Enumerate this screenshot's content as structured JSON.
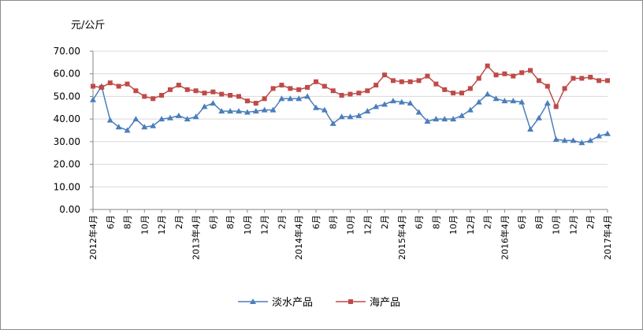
{
  "chart_data": {
    "type": "line",
    "unit_label": "元/公斤",
    "ylim": [
      0,
      70
    ],
    "y_ticks": [
      "0.00",
      "10.00",
      "20.00",
      "30.00",
      "40.00",
      "50.00",
      "60.00",
      "70.00"
    ],
    "grid": "horizontal",
    "legend_position": "bottom",
    "x_labels": [
      "2012年4月",
      "6月",
      "8月",
      "10月",
      "12月",
      "2月",
      "2013年4月",
      "6月",
      "8月",
      "10月",
      "12月",
      "2月",
      "2014年4月",
      "6月",
      "8月",
      "10月",
      "12月",
      "2月",
      "2015年4月",
      "6月",
      "8月",
      "10月",
      "12月",
      "2月",
      "2016年4月",
      "6月",
      "8月",
      "10月",
      "12月",
      "2月",
      "2017年4月"
    ],
    "series": [
      {
        "name": "淡水产品",
        "color": "#4a7ebb",
        "marker": "triangle",
        "values": [
          48.5,
          54.5,
          39.5,
          36.5,
          35,
          40,
          36.5,
          37,
          40,
          40.5,
          41.5,
          40,
          41,
          45.5,
          47,
          43.5,
          43.5,
          43.5,
          43,
          43.5,
          44,
          44,
          49,
          49,
          49,
          50,
          45,
          44,
          38,
          41,
          41,
          41.5,
          43.5,
          45.5,
          46.5,
          48,
          47.5,
          47,
          43,
          39,
          40,
          40,
          40,
          41.5,
          44,
          47.5,
          51,
          49,
          48,
          48,
          47.5,
          35.5,
          40.5,
          47,
          31,
          30.5,
          30.5,
          29.5,
          30.5,
          32.5,
          33.5
        ]
      },
      {
        "name": "海产品",
        "color": "#be4b48",
        "marker": "square",
        "values": [
          54.5,
          54,
          56,
          54.5,
          55.5,
          52.5,
          50,
          49,
          50.5,
          53,
          55,
          53,
          52.5,
          51.5,
          52,
          51,
          50.5,
          50,
          48,
          47,
          49,
          53.5,
          55,
          53.5,
          53,
          54,
          56.5,
          54.5,
          52.5,
          50.5,
          51,
          51.5,
          52.5,
          55,
          59.5,
          57,
          56.5,
          56.5,
          57,
          59,
          55.5,
          53,
          51.5,
          51.5,
          53.5,
          58,
          63.5,
          59.5,
          60,
          59,
          60.5,
          61.5,
          57,
          54.5,
          45.5,
          53.5,
          58,
          58,
          58.5,
          57,
          57
        ]
      }
    ]
  }
}
